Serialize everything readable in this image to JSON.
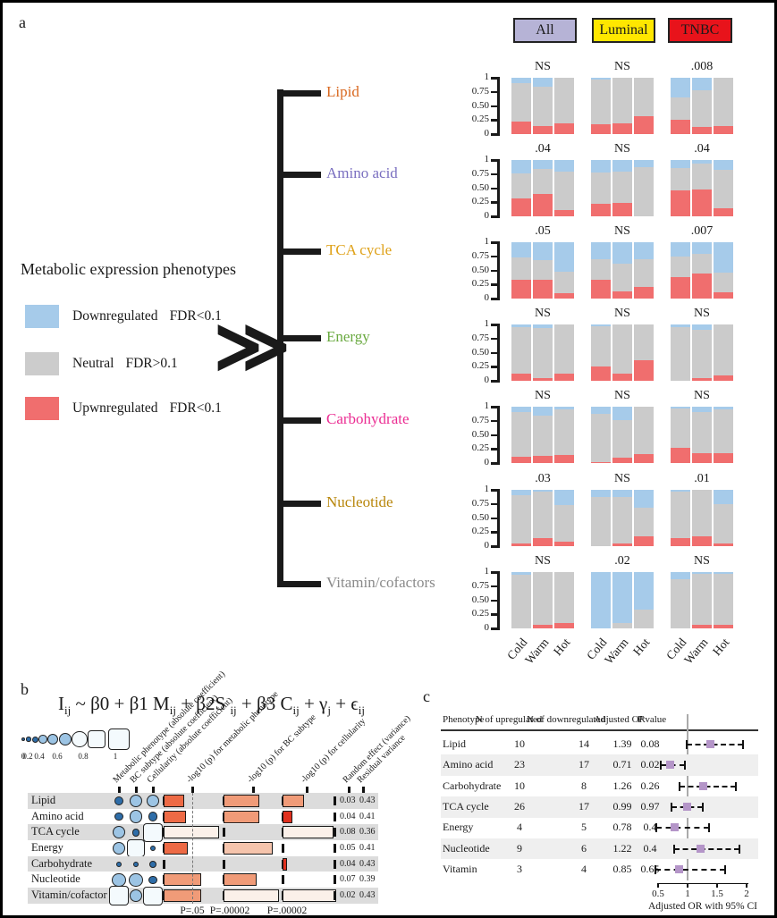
{
  "panel_a": {
    "label": "a",
    "legend": {
      "title": "Metabolic expression phenotypes",
      "items": [
        {
          "label": "Downregulated",
          "fdr": "FDR<0.1",
          "color": "#A6CBEA"
        },
        {
          "label": "Neutral",
          "fdr": "FDR>0.1",
          "color": "#CCCCCC"
        },
        {
          "label": "Upwnregulated",
          "fdr": "FDR<0.1",
          "color": "#F06E6E"
        }
      ]
    },
    "chevron": "≫",
    "tree_items": [
      {
        "label": "Lipid",
        "color": "#D9671E"
      },
      {
        "label": "Amino acid",
        "color": "#7A6FC0"
      },
      {
        "label": "TCA cycle",
        "color": "#DFA118"
      },
      {
        "label": "Energy",
        "color": "#69A93F"
      },
      {
        "label": "Carbohydrate",
        "color": "#EB2C92"
      },
      {
        "label": "Nucleotide",
        "color": "#B8860B"
      },
      {
        "label": "Vitamin/cofactors",
        "color": "#8A8A8A"
      }
    ],
    "group_headers": [
      {
        "label": "All",
        "color": "#B6B3D6"
      },
      {
        "label": "Luminal",
        "color": "#FFE700"
      },
      {
        "label": "TNBC",
        "color": "#E8131B"
      }
    ],
    "y_ticks": [
      "1",
      "0.75",
      "0.50",
      "0.25",
      "0"
    ]
  },
  "panel_b": {
    "label": "b",
    "formula_segments": [
      [
        "I",
        "ij"
      ],
      [
        " ~ β0 + β1 M",
        "ij"
      ],
      [
        " + β2S ",
        "ij"
      ],
      [
        " + β3  C",
        "ij"
      ],
      [
        " + γ",
        "j"
      ],
      [
        " + ϵ",
        "ij"
      ]
    ],
    "size_legend_labels": [
      "0",
      "0.2",
      "0.4",
      "0.6",
      "0.8",
      "1"
    ]
  },
  "panel_c": {
    "label": "c"
  },
  "chart_data": [
    {
      "id": "phenotype-proportion-stacked-bars",
      "type": "bar",
      "subtype": "stacked-proportion",
      "groups": [
        "All",
        "Luminal",
        "TNBC"
      ],
      "x_categories": [
        "Cold",
        "Warm",
        "Hot"
      ],
      "ylim": [
        0,
        1
      ],
      "y_ticks": [
        1,
        0.75,
        0.5,
        0.25,
        0
      ],
      "colors": {
        "downregulated": "#A6CBEA",
        "neutral": "#CBCBCB",
        "upregulated": "#F06E6E"
      },
      "rows": [
        {
          "phenotype": "Lipid",
          "p_values": [
            "NS",
            "NS",
            ".008"
          ],
          "upregulated": [
            [
              0.22,
              0.15,
              0.19
            ],
            [
              0.17,
              0.19,
              0.32
            ],
            [
              0.25,
              0.12,
              0.15
            ]
          ],
          "downregulated": [
            [
              0.1,
              0.16,
              0.0
            ],
            [
              0.03,
              0.0,
              0.0
            ],
            [
              0.35,
              0.22,
              0.0
            ]
          ]
        },
        {
          "phenotype": "Amino acid",
          "p_values": [
            ".04",
            "NS",
            ".04"
          ],
          "upregulated": [
            [
              0.32,
              0.4,
              0.11
            ],
            [
              0.22,
              0.24,
              0.0
            ],
            [
              0.46,
              0.48,
              0.14
            ]
          ],
          "downregulated": [
            [
              0.24,
              0.16,
              0.2
            ],
            [
              0.22,
              0.2,
              0.13
            ],
            [
              0.15,
              0.07,
              0.18
            ]
          ]
        },
        {
          "phenotype": "TCA cycle",
          "p_values": [
            ".05",
            "NS",
            ".007"
          ],
          "upregulated": [
            [
              0.33,
              0.33,
              0.1
            ],
            [
              0.34,
              0.13,
              0.2
            ],
            [
              0.38,
              0.44,
              0.11
            ]
          ],
          "downregulated": [
            [
              0.27,
              0.32,
              0.53
            ],
            [
              0.3,
              0.38,
              0.3
            ],
            [
              0.25,
              0.2,
              0.54
            ]
          ]
        },
        {
          "phenotype": "Energy",
          "p_values": [
            "NS",
            "NS",
            "NS"
          ],
          "upregulated": [
            [
              0.12,
              0.05,
              0.13
            ],
            [
              0.26,
              0.12,
              0.36
            ],
            [
              0.0,
              0.04,
              0.1
            ]
          ],
          "downregulated": [
            [
              0.04,
              0.07,
              0.0
            ],
            [
              0.03,
              0.0,
              0.0
            ],
            [
              0.05,
              0.1,
              0.0
            ]
          ]
        },
        {
          "phenotype": "Carbohydrate",
          "p_values": [
            "NS",
            "NS",
            "NS"
          ],
          "upregulated": [
            [
              0.11,
              0.13,
              0.15
            ],
            [
              0.02,
              0.09,
              0.16
            ],
            [
              0.27,
              0.17,
              0.17
            ]
          ],
          "downregulated": [
            [
              0.09,
              0.16,
              0.05
            ],
            [
              0.12,
              0.24,
              0.0
            ],
            [
              0.03,
              0.1,
              0.05
            ]
          ]
        },
        {
          "phenotype": "Nucleotide",
          "p_values": [
            ".03",
            "NS",
            ".01"
          ],
          "upregulated": [
            [
              0.05,
              0.14,
              0.08
            ],
            [
              0.0,
              0.04,
              0.17
            ],
            [
              0.14,
              0.18,
              0.05
            ]
          ],
          "downregulated": [
            [
              0.09,
              0.03,
              0.27
            ],
            [
              0.13,
              0.13,
              0.32
            ],
            [
              0.03,
              0.0,
              0.26
            ]
          ]
        },
        {
          "phenotype": "Vitamin/cofactors",
          "p_values": [
            "NS",
            ".02",
            "NS"
          ],
          "upregulated": [
            [
              0.0,
              0.06,
              0.1
            ],
            [
              0.0,
              0.0,
              0.0
            ],
            [
              0.0,
              0.07,
              0.07
            ]
          ],
          "downregulated": [
            [
              0.05,
              0.0,
              0.0
            ],
            [
              1.0,
              0.91,
              0.67
            ],
            [
              0.12,
              0.03,
              0.03
            ]
          ]
        }
      ]
    },
    {
      "id": "mixed-model-bubble-bar-matrix",
      "type": "heatmap",
      "subtype": "bubble-bar-matrix",
      "size_scale": [
        0,
        0.2,
        0.4,
        0.6,
        0.8,
        1
      ],
      "columns": [
        "Metabolic phenotype (absolute coefficient)",
        "BC subtype (absolute coefficient)",
        "Cellularity (absolute coefficient)",
        "-log10 (p) for metabolic phenotype",
        "-log10 (p) for BC subtype",
        "-log10 (p) for cellularity",
        "Random effect (variance)",
        "Residual variance"
      ],
      "p_annotations": [
        "P=.05",
        "P=.00002",
        "P=.00002"
      ],
      "rows": [
        {
          "phenotype": "Lipid",
          "bubbles": [
            0.35,
            0.55,
            0.55
          ],
          "bars": [
            {
              "v": 0.37,
              "c": "#ED6A45"
            },
            {
              "v": 0.65,
              "c": "#F09B78"
            },
            {
              "v": 0.4,
              "c": "#F09B78"
            }
          ],
          "random_effect": "0.03",
          "residual_variance": "0.43"
        },
        {
          "phenotype": "Amino acid",
          "bubbles": [
            0.3,
            0.55,
            0.35
          ],
          "bars": [
            {
              "v": 0.4,
              "c": "#ED6A45"
            },
            {
              "v": 0.65,
              "c": "#F09B78"
            },
            {
              "v": 0.18,
              "c": "#E0301E"
            }
          ],
          "random_effect": "0.04",
          "residual_variance": "0.41"
        },
        {
          "phenotype": "TCA cycle",
          "bubbles": [
            0.55,
            0.25,
            0.9
          ],
          "bars": [
            {
              "v": 1.0,
              "c": "#FBF0E9"
            },
            {
              "v": 0.0,
              "c": null
            },
            {
              "v": 0.95,
              "c": "#FBF0E9"
            }
          ],
          "random_effect": "0.08",
          "residual_variance": "0.36"
        },
        {
          "phenotype": "Energy",
          "bubbles": [
            0.55,
            0.85,
            0.1
          ],
          "bars": [
            {
              "v": 0.44,
              "c": "#ED6A45"
            },
            {
              "v": 0.88,
              "c": "#F5C4AC"
            },
            {
              "v": 0.0,
              "c": null
            }
          ],
          "random_effect": "0.05",
          "residual_variance": "0.41"
        },
        {
          "phenotype": "Carbohydrate",
          "bubbles": [
            0.1,
            0.1,
            0.2
          ],
          "bars": [
            {
              "v": 0.0,
              "c": null
            },
            {
              "v": 0.0,
              "c": null
            },
            {
              "v": 0.08,
              "c": "#E0301E"
            }
          ],
          "random_effect": "0.04",
          "residual_variance": "0.43"
        },
        {
          "phenotype": "Nucleotide",
          "bubbles": [
            0.6,
            0.6,
            0.3
          ],
          "bars": [
            {
              "v": 0.68,
              "c": "#F09B78"
            },
            {
              "v": 0.6,
              "c": "#F09B78"
            },
            {
              "v": 0.0,
              "c": null
            }
          ],
          "random_effect": "0.07",
          "residual_variance": "0.39"
        },
        {
          "phenotype": "Vitamin/cofactor",
          "bubbles": [
            0.95,
            0.55,
            0.9
          ],
          "bars": [
            {
              "v": 0.68,
              "c": "#F09B78"
            },
            {
              "v": 1.0,
              "c": "#FBF0E9"
            },
            {
              "v": 1.0,
              "c": "#FBF0E9"
            }
          ],
          "random_effect": "0.02",
          "residual_variance": "0.43"
        }
      ]
    },
    {
      "id": "adjusted-or-forest-plot",
      "type": "table",
      "subtype": "forest-plot",
      "table_headers": [
        "Phenotype",
        "N of upregulated",
        "N of downregulated",
        "Adjusted OR",
        "P value"
      ],
      "axis_ticks": [
        "0.5",
        "1",
        "1.5",
        "2"
      ],
      "axis_range": [
        0.5,
        2
      ],
      "axis_label": "Adjusted OR with 95% CI",
      "reference_line": 1,
      "marker_color": "#B495C8",
      "rows": [
        {
          "phenotype": "Lipid",
          "n_up": "10",
          "n_down": "14",
          "or": "1.39",
          "p": "0.08",
          "est": 1.39,
          "ci": [
            0.98,
            1.94
          ]
        },
        {
          "phenotype": "Amino acid",
          "n_up": "23",
          "n_down": "17",
          "or": "0.71",
          "p": "0.02",
          "est": 0.71,
          "ci": [
            0.55,
            0.95
          ]
        },
        {
          "phenotype": "Carbohydrate",
          "n_up": "10",
          "n_down": "8",
          "or": "1.26",
          "p": "0.26",
          "est": 1.26,
          "ci": [
            0.86,
            1.82
          ]
        },
        {
          "phenotype": "TCA cycle",
          "n_up": "26",
          "n_down": "17",
          "or": "0.99",
          "p": "0.97",
          "est": 0.99,
          "ci": [
            0.73,
            1.26
          ]
        },
        {
          "phenotype": "Energy",
          "n_up": "4",
          "n_down": "5",
          "or": "0.78",
          "p": "0.4",
          "est": 0.78,
          "ci": [
            0.47,
            1.36
          ]
        },
        {
          "phenotype": "Nucleotide",
          "n_up": "9",
          "n_down": "6",
          "or": "1.22",
          "p": "0.4",
          "est": 1.22,
          "ci": [
            0.78,
            1.88
          ]
        },
        {
          "phenotype": "Vitamin",
          "n_up": "3",
          "n_down": "4",
          "or": "0.85",
          "p": "0.65",
          "est": 0.85,
          "ci": [
            0.46,
            1.64
          ]
        }
      ]
    }
  ]
}
